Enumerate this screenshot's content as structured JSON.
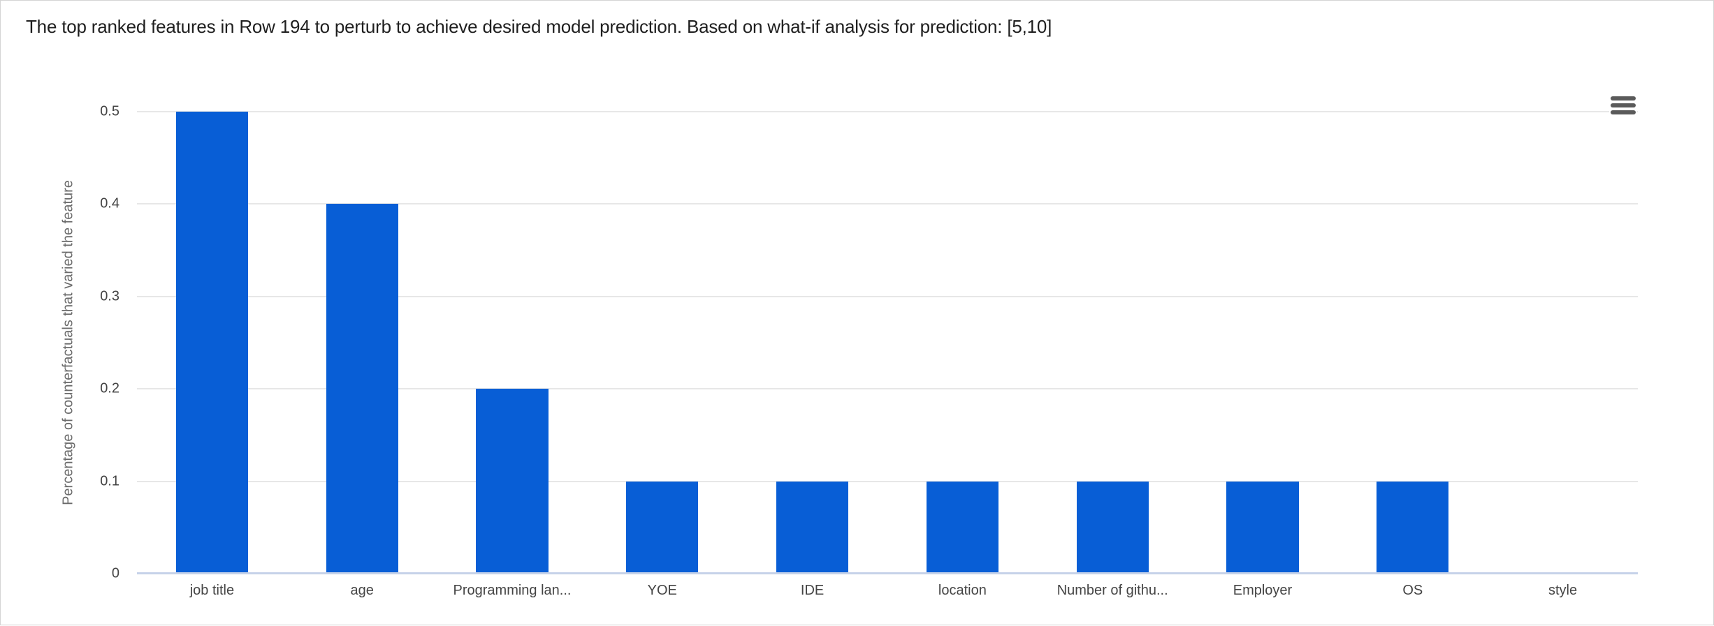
{
  "window": {
    "background": "#ffffff",
    "border_color": "#d4d4d4"
  },
  "header": {
    "title": "The top ranked features in Row 194 to perturb to achieve desired model prediction. Based on what-if analysis for prediction: [5,10]"
  },
  "toolbar": {
    "menu_icon": "hamburger-menu-icon",
    "menu_color": "#5a5a5a"
  },
  "chart_data": {
    "type": "bar",
    "title": "The top ranked features in Row 194 to perturb to achieve desired model prediction. Based on what-if analysis for prediction: [5,10]",
    "categories": [
      "job title",
      "age",
      "Programming lan...",
      "YOE",
      "IDE",
      "location",
      "Number of githu...",
      "Employer",
      "OS",
      "style"
    ],
    "values": [
      0.5,
      0.4,
      0.2,
      0.1,
      0.1,
      0.1,
      0.1,
      0.1,
      0.1,
      0
    ],
    "xlabel": "",
    "ylabel": "Percentage of counterfactuals that varied the feature",
    "ylim": [
      0,
      0.5
    ],
    "yticks": [
      0,
      0.1,
      0.2,
      0.3,
      0.4,
      0.5
    ],
    "grid": true,
    "legend": "none",
    "bar_color": "#085ed6",
    "grid_color": "#e7e7e7",
    "axis_line_color": "#c6d2e9",
    "tick_label_color": "#444444",
    "axis_title_color": "#6b6b6b"
  }
}
